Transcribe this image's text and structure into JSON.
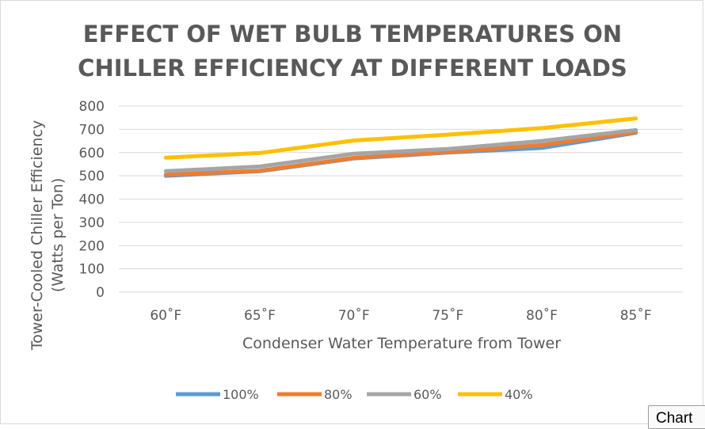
{
  "chart_data": {
    "type": "line",
    "title_lines": [
      "EFFECT OF WET BULB TEMPERATURES ON",
      "CHILLER EFFICIENCY AT DIFFERENT LOADS"
    ],
    "xlabel": "Condenser Water Temperature from Tower",
    "ylabel_lines": [
      "Tower-Cooled Chiller Efficiency",
      "(Watts per Ton)"
    ],
    "categories": [
      "60˚F",
      "65˚F",
      "70˚F",
      "75˚F",
      "80˚F",
      "85˚F"
    ],
    "ylim": [
      0,
      800
    ],
    "yticks": [
      0,
      100,
      200,
      300,
      400,
      500,
      600,
      700,
      800
    ],
    "grid": true,
    "legend_position": "bottom",
    "series": [
      {
        "name": "100%",
        "color": "#5b9bd5",
        "values": [
          500,
          520,
          575,
          600,
          620,
          685
        ]
      },
      {
        "name": "80%",
        "color": "#ed7d31",
        "values": [
          505,
          522,
          577,
          602,
          632,
          688
        ]
      },
      {
        "name": "60%",
        "color": "#a5a5a5",
        "values": [
          520,
          540,
          595,
          615,
          650,
          697
        ]
      },
      {
        "name": "40%",
        "color": "#ffc000",
        "values": [
          578,
          598,
          652,
          677,
          705,
          747
        ]
      }
    ]
  },
  "ui": {
    "chart_tab_label": "Chart"
  }
}
